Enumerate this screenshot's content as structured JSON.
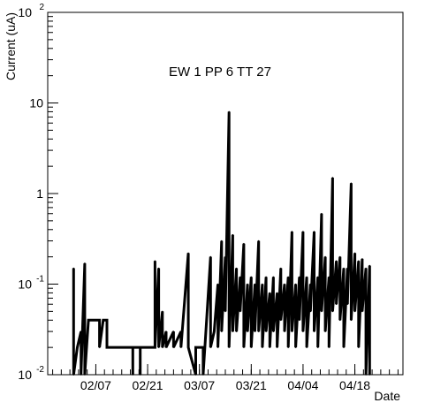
{
  "chart_data": {
    "type": "line",
    "title": "EW 1 PP 6 TT 27",
    "xlabel": "Date",
    "ylabel": "Current (uA)",
    "y_scale": "log",
    "ylim": [
      0.01,
      100
    ],
    "xlim": [
      "2013-01-25",
      "2013-05-01"
    ],
    "x_ticks": [
      "02/07",
      "02/21",
      "03/07",
      "03/21",
      "04/04",
      "04/18"
    ],
    "x_tick_dates": [
      "2013-02-07",
      "2013-02-21",
      "2013-03-07",
      "2013-03-21",
      "2013-04-04",
      "2013-04-18"
    ],
    "y_ticks": [
      {
        "value": 0.01,
        "label": "10",
        "exp": "-2"
      },
      {
        "value": 0.1,
        "label": "10",
        "exp": "-1"
      },
      {
        "value": 1,
        "label": "1",
        "exp": ""
      },
      {
        "value": 10,
        "label": "10",
        "exp": ""
      },
      {
        "value": 100,
        "label": "10",
        "exp": "2"
      }
    ],
    "grid": false,
    "legend": "none",
    "line_color": "#000000",
    "series": [
      {
        "points": [
          [
            "2013-02-01",
            0.01
          ],
          [
            "2013-02-01",
            0.15
          ],
          [
            "2013-02-01",
            0.01
          ],
          [
            "2013-02-02",
            0.02
          ],
          [
            "2013-02-03",
            0.03
          ],
          [
            "2013-02-03",
            0.01
          ],
          [
            "2013-02-04",
            0.17
          ],
          [
            "2013-02-04",
            0.01
          ],
          [
            "2013-02-05",
            0.04
          ],
          [
            "2013-02-08",
            0.04
          ],
          [
            "2013-02-08",
            0.02
          ],
          [
            "2013-02-09",
            0.04
          ],
          [
            "2013-02-10",
            0.04
          ],
          [
            "2013-02-10",
            0.02
          ],
          [
            "2013-02-17",
            0.02
          ],
          [
            "2013-02-17",
            0.01
          ],
          [
            "2013-02-17",
            0.02
          ],
          [
            "2013-02-19",
            0.02
          ],
          [
            "2013-02-19",
            0.01
          ],
          [
            "2013-02-19",
            0.02
          ],
          [
            "2013-02-23",
            0.02
          ],
          [
            "2013-02-23",
            0.18
          ],
          [
            "2013-02-23",
            0.02
          ],
          [
            "2013-02-24",
            0.15
          ],
          [
            "2013-02-24",
            0.02
          ],
          [
            "2013-02-25",
            0.05
          ],
          [
            "2013-02-25",
            0.02
          ],
          [
            "2013-02-26",
            0.03
          ],
          [
            "2013-02-26",
            0.02
          ],
          [
            "2013-02-28",
            0.03
          ],
          [
            "2013-02-28",
            0.02
          ],
          [
            "2013-03-02",
            0.03
          ],
          [
            "2013-03-02",
            0.02
          ],
          [
            "2013-03-04",
            0.22
          ],
          [
            "2013-03-04",
            0.02
          ],
          [
            "2013-03-06",
            0.01
          ],
          [
            "2013-03-06",
            0.02
          ],
          [
            "2013-03-08",
            0.02
          ],
          [
            "2013-03-08",
            0.01
          ],
          [
            "2013-03-10",
            0.2
          ],
          [
            "2013-03-10",
            0.02
          ],
          [
            "2013-03-11",
            0.03
          ],
          [
            "2013-03-12",
            0.1
          ],
          [
            "2013-03-12",
            0.02
          ],
          [
            "2013-03-13",
            0.3
          ],
          [
            "2013-03-13",
            0.03
          ],
          [
            "2013-03-14",
            0.2
          ],
          [
            "2013-03-14",
            0.05
          ],
          [
            "2013-03-15",
            8
          ],
          [
            "2013-03-15",
            0.02
          ],
          [
            "2013-03-16",
            0.35
          ],
          [
            "2013-03-16",
            0.03
          ],
          [
            "2013-03-17",
            0.15
          ],
          [
            "2013-03-17",
            0.03
          ],
          [
            "2013-03-18",
            0.12
          ],
          [
            "2013-03-18",
            0.05
          ],
          [
            "2013-03-19",
            0.28
          ],
          [
            "2013-03-19",
            0.02
          ],
          [
            "2013-03-20",
            0.1
          ],
          [
            "2013-03-20",
            0.03
          ],
          [
            "2013-03-21",
            0.12
          ],
          [
            "2013-03-21",
            0.02
          ],
          [
            "2013-03-22",
            0.1
          ],
          [
            "2013-03-22",
            0.03
          ],
          [
            "2013-03-23",
            0.3
          ],
          [
            "2013-03-23",
            0.03
          ],
          [
            "2013-03-24",
            0.1
          ],
          [
            "2013-03-24",
            0.02
          ],
          [
            "2013-03-25",
            0.12
          ],
          [
            "2013-03-25",
            0.03
          ],
          [
            "2013-03-26",
            0.08
          ],
          [
            "2013-03-26",
            0.02
          ],
          [
            "2013-03-27",
            0.12
          ],
          [
            "2013-03-27",
            0.03
          ],
          [
            "2013-03-28",
            0.08
          ],
          [
            "2013-03-28",
            0.02
          ],
          [
            "2013-03-29",
            0.15
          ],
          [
            "2013-03-29",
            0.04
          ],
          [
            "2013-03-30",
            0.1
          ],
          [
            "2013-03-30",
            0.03
          ],
          [
            "2013-03-31",
            0.12
          ],
          [
            "2013-03-31",
            0.02
          ],
          [
            "2013-04-01",
            0.38
          ],
          [
            "2013-04-01",
            0.03
          ],
          [
            "2013-04-02",
            0.1
          ],
          [
            "2013-04-02",
            0.02
          ],
          [
            "2013-04-03",
            0.12
          ],
          [
            "2013-04-03",
            0.04
          ],
          [
            "2013-04-04",
            0.38
          ],
          [
            "2013-04-04",
            0.03
          ],
          [
            "2013-04-05",
            0.12
          ],
          [
            "2013-04-05",
            0.02
          ],
          [
            "2013-04-06",
            0.1
          ],
          [
            "2013-04-06",
            0.05
          ],
          [
            "2013-04-07",
            0.38
          ],
          [
            "2013-04-07",
            0.03
          ],
          [
            "2013-04-08",
            0.12
          ],
          [
            "2013-04-08",
            0.02
          ],
          [
            "2013-04-09",
            0.6
          ],
          [
            "2013-04-09",
            0.05
          ],
          [
            "2013-04-10",
            0.2
          ],
          [
            "2013-04-10",
            0.03
          ],
          [
            "2013-04-11",
            0.12
          ],
          [
            "2013-04-11",
            0.02
          ],
          [
            "2013-04-12",
            1.5
          ],
          [
            "2013-04-12",
            0.05
          ],
          [
            "2013-04-13",
            0.18
          ],
          [
            "2013-04-13",
            0.06
          ],
          [
            "2013-04-14",
            0.2
          ],
          [
            "2013-04-14",
            0.04
          ],
          [
            "2013-04-15",
            0.15
          ],
          [
            "2013-04-15",
            0.02
          ],
          [
            "2013-04-16",
            0.15
          ],
          [
            "2013-04-16",
            0.06
          ],
          [
            "2013-04-17",
            1.3
          ],
          [
            "2013-04-17",
            0.04
          ],
          [
            "2013-04-18",
            0.22
          ],
          [
            "2013-04-18",
            0.05
          ],
          [
            "2013-04-19",
            0.18
          ],
          [
            "2013-04-19",
            0.02
          ],
          [
            "2013-04-20",
            0.19
          ],
          [
            "2013-04-20",
            0.05
          ],
          [
            "2013-04-21",
            0.15
          ],
          [
            "2013-04-21",
            0.01
          ],
          [
            "2013-04-22",
            0.16
          ],
          [
            "2013-04-22",
            0.01
          ]
        ]
      }
    ]
  }
}
